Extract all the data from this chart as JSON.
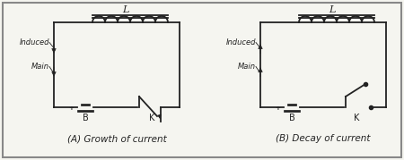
{
  "bg_color": "#f5f5f0",
  "border_color": "#555555",
  "line_color": "#222222",
  "caption_A": "(A) Growth of current",
  "caption_B": "(B) Decay of current",
  "label_L": "L",
  "label_Induced": "Induced",
  "label_Main": "Main",
  "label_B": "B",
  "label_K": "K",
  "label_plus": "+"
}
